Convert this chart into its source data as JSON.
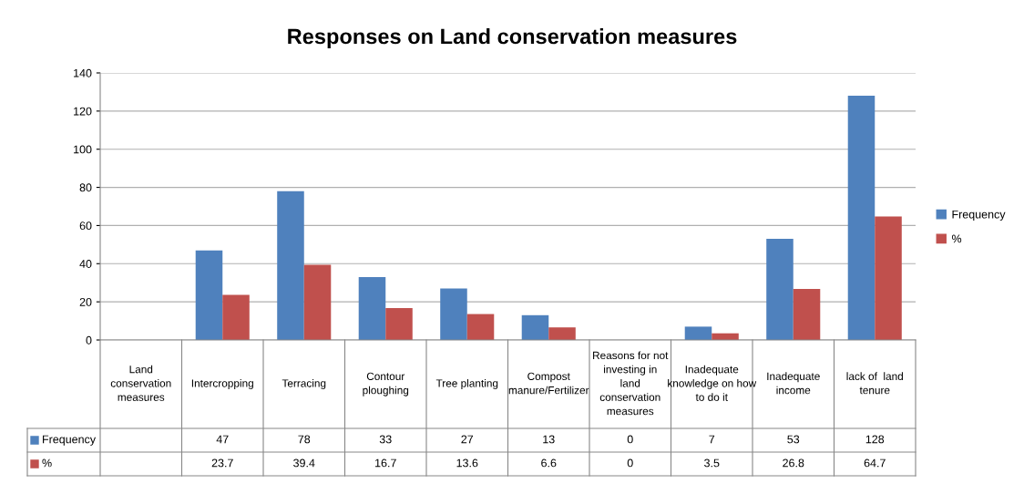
{
  "chart_data": {
    "type": "bar",
    "title": "Responses on Land conservation measures",
    "categories": [
      "Land conservation measures",
      "Intercropping",
      "Terracing",
      "Contour ploughing",
      "Tree planting",
      "Compost manure/Fertilizer",
      "Reasons for not investing in land conservation measures",
      "Inadequate knowledge on how to do it",
      "Inadequate income",
      "lack of  land tenure"
    ],
    "series": [
      {
        "name": "Frequency",
        "color": "#4f81bd",
        "values": [
          null,
          47,
          78,
          33,
          27,
          13,
          0,
          7,
          53,
          128
        ]
      },
      {
        "name": "%",
        "color": "#c0504d",
        "values": [
          null,
          23.7,
          39.4,
          16.7,
          13.6,
          6.6,
          0,
          3.5,
          26.8,
          64.7
        ]
      }
    ],
    "ylim": [
      0,
      140
    ],
    "yticks": [
      0,
      20,
      40,
      60,
      80,
      100,
      120,
      140
    ],
    "grid": "y",
    "legend": "right",
    "data_labels": true
  }
}
